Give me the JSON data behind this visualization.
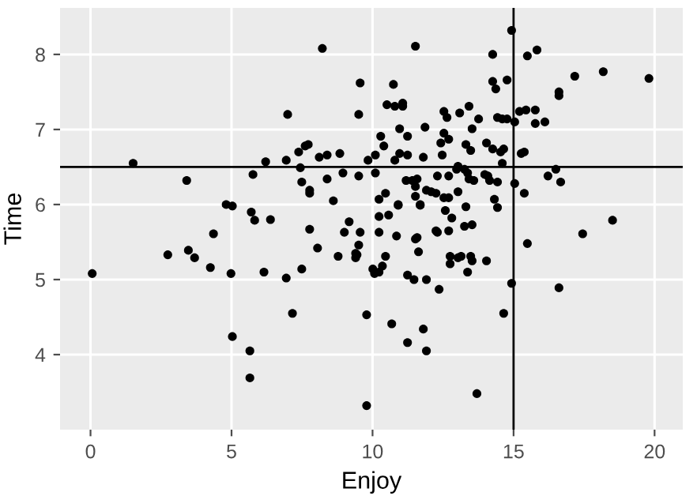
{
  "chart_data": {
    "type": "scatter",
    "xlabel": "Enjoy",
    "ylabel": "Time",
    "xlim": [
      -1.08,
      21.0
    ],
    "ylim": [
      3.0,
      8.62
    ],
    "xticks": [
      0,
      5,
      10,
      15,
      20
    ],
    "yticks": [
      4,
      5,
      6,
      7,
      8
    ],
    "grid": true,
    "marker": "circle",
    "ref_lines": [
      {
        "axis": "y",
        "value": 6.5,
        "color": "#000000"
      },
      {
        "axis": "x",
        "value": 15,
        "color": "#000000"
      }
    ],
    "series": [
      {
        "color": "#000000",
        "x": [
          1.51,
          3.41,
          4.81,
          5.03,
          5.7,
          5.76,
          6.21,
          6.38,
          5.82,
          6.94,
          6.99,
          7.38,
          7.44,
          7.49,
          7.61,
          7.72,
          7.77,
          7.77,
          8.11,
          8.22,
          8.39,
          8.39,
          8.61,
          8.84,
          8.95,
          9.17,
          9.51,
          9.56,
          9.51,
          9.84,
          10.1,
          10.1,
          0.06,
          2.74,
          3.47,
          3.69,
          4.36,
          4.25,
          4.98,
          6.15,
          6.94,
          7.16,
          7.49,
          7.77,
          8.05,
          8.78,
          9.0,
          9.4,
          9.4,
          9.45,
          9.51,
          9.56,
          10.01,
          10.07,
          9.79,
          5.03,
          5.65,
          5.65,
          9.79,
          10.68,
          11.8,
          11.24,
          11.91,
          13.7,
          14.65,
          14.93,
          15.49,
          16.61,
          17.45,
          18.51,
          12.36,
          11.91,
          11.47,
          11.24,
          10.23,
          10.35,
          10.46,
          11.63,
          12.75,
          12.75,
          13.03,
          13.14,
          13.48,
          13.53,
          14.04,
          13.37,
          10.23,
          10.85,
          11.52,
          11.58,
          12.25,
          12.3,
          12.7,
          13.26,
          13.53,
          10.23,
          10.57,
          12.81,
          12.58,
          14.43,
          10.91,
          11.69,
          13.31,
          14.93,
          11.52,
          14.26,
          15.49,
          15.83,
          17.17,
          18.18,
          19.8,
          16.61,
          16.61,
          14.26,
          14.77,
          14.37,
          10.74,
          10.51,
          10.79,
          11.07,
          11.07,
          12.53,
          12.64,
          13.09,
          13.42,
          13.76,
          13.53,
          14.43,
          14.6,
          14.77,
          15.04,
          15.21,
          15.44,
          15.77,
          15.77,
          16.11,
          10.29,
          10.4,
          10.96,
          11.24,
          11.86,
          12.53,
          12.7,
          12.42,
          13.31,
          13.48,
          14.04,
          14.26,
          14.54,
          14.65,
          15.27,
          15.38,
          14.6,
          10.79,
          10.96,
          11.24,
          11.8,
          12.47,
          13.03,
          13.26,
          13.37,
          12.98,
          11.19,
          11.41,
          11.58,
          11.52,
          12.3,
          12.7,
          13.42,
          13.59,
          13.98,
          14.09,
          14.15,
          14.43,
          15.04,
          15.38,
          16.22,
          16.5,
          16.67,
          10.23,
          10.46,
          10.91,
          11.52,
          11.69,
          11.91,
          12.08,
          12.25,
          12.53,
          12.7,
          13.03,
          14.32
        ],
        "values": [
          6.55,
          6.32,
          6.0,
          5.98,
          5.9,
          6.4,
          6.57,
          5.8,
          5.79,
          6.59,
          7.2,
          6.7,
          6.49,
          6.3,
          6.78,
          6.8,
          6.19,
          6.15,
          6.63,
          8.08,
          6.66,
          6.34,
          6.05,
          6.68,
          6.42,
          5.77,
          7.2,
          7.62,
          6.38,
          6.59,
          6.66,
          6.42,
          5.08,
          5.33,
          5.39,
          5.29,
          5.61,
          5.16,
          5.08,
          5.1,
          5.02,
          4.55,
          5.14,
          5.67,
          5.42,
          5.31,
          5.63,
          5.35,
          5.29,
          5.33,
          5.46,
          5.63,
          5.14,
          5.08,
          4.53,
          4.24,
          4.05,
          3.69,
          3.32,
          4.41,
          4.34,
          4.16,
          4.05,
          3.48,
          4.55,
          4.95,
          5.48,
          4.89,
          5.61,
          5.79,
          4.87,
          5.0,
          5.0,
          5.06,
          5.1,
          5.18,
          5.31,
          5.37,
          5.31,
          5.21,
          5.29,
          5.31,
          5.31,
          5.25,
          5.25,
          5.1,
          5.63,
          5.58,
          5.54,
          5.56,
          5.65,
          5.63,
          5.65,
          5.71,
          5.73,
          5.84,
          5.86,
          5.82,
          5.92,
          5.96,
          5.99,
          5.99,
          5.97,
          8.32,
          8.11,
          8.0,
          7.98,
          8.06,
          7.71,
          7.77,
          7.68,
          7.5,
          7.45,
          7.64,
          7.66,
          7.54,
          7.6,
          7.33,
          7.31,
          7.35,
          7.31,
          7.24,
          7.16,
          7.22,
          7.31,
          7.14,
          7.01,
          7.16,
          7.14,
          7.14,
          7.1,
          7.24,
          7.26,
          7.26,
          7.08,
          7.1,
          6.91,
          6.78,
          7.01,
          6.91,
          7.03,
          6.95,
          6.87,
          6.82,
          6.8,
          6.72,
          6.82,
          6.74,
          6.7,
          6.74,
          6.68,
          6.7,
          6.55,
          6.59,
          6.68,
          6.66,
          6.63,
          6.66,
          6.51,
          6.47,
          6.42,
          6.47,
          6.32,
          6.32,
          6.34,
          6.24,
          6.38,
          6.38,
          6.34,
          6.32,
          6.4,
          6.38,
          6.32,
          6.3,
          6.28,
          6.15,
          6.38,
          6.47,
          6.3,
          6.07,
          6.15,
          6.0,
          6.11,
          6.0,
          6.19,
          6.17,
          6.15,
          6.09,
          6.09,
          6.17,
          6.07
        ]
      }
    ]
  }
}
